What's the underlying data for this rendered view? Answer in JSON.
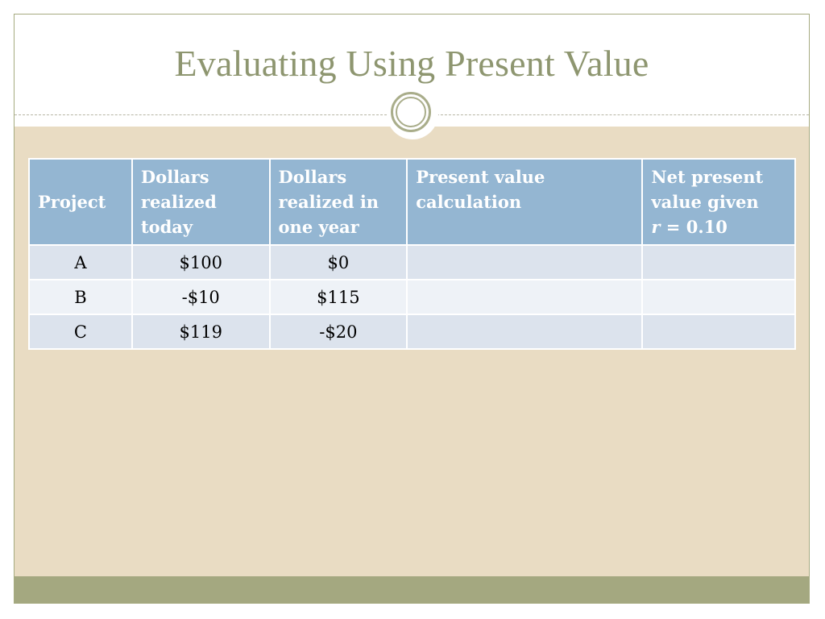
{
  "slide": {
    "title": "Evaluating Using Present Value"
  },
  "table": {
    "headers": {
      "project": "Project",
      "dollars_today": "Dollars realized today",
      "dollars_one_year": "Dollars realized in one year",
      "pv_calc": "Present value calculation",
      "npv_prefix": "Net present value given",
      "npv_var": "r",
      "npv_suffix": " = 0.10"
    },
    "rows": [
      {
        "project": "A",
        "today": "$100",
        "one_year": "$0",
        "pv_calc": "",
        "npv": ""
      },
      {
        "project": "B",
        "today": "-$10",
        "one_year": "$115",
        "pv_calc": "",
        "npv": ""
      },
      {
        "project": "C",
        "today": "$119",
        "one_year": "-$20",
        "pv_calc": "",
        "npv": ""
      }
    ]
  },
  "colors": {
    "title": "#8e9670",
    "header_fill": "#94b6d2",
    "row_odd": "#dce3ed",
    "row_even": "#eef2f7",
    "body_bg": "#e9dcc3",
    "footer_band": "#a4a880"
  }
}
